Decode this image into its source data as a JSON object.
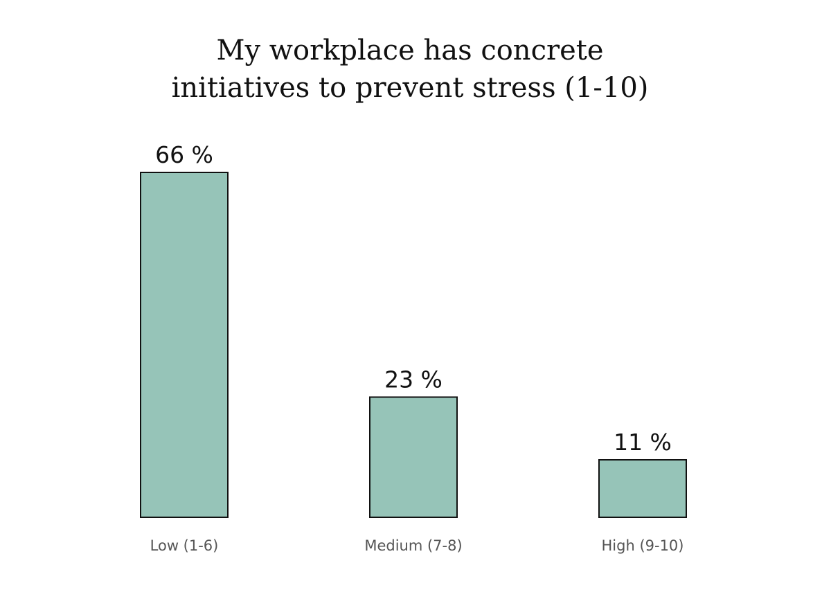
{
  "chart_data": {
    "type": "bar",
    "title_lines": [
      "My workplace has concrete",
      "initiatives to prevent stress (1-10)"
    ],
    "categories": [
      "Low (1-6)",
      "Medium (7-8)",
      "High (9-10)"
    ],
    "values": [
      66,
      23,
      11
    ],
    "data_labels": [
      "66 %",
      "23 %",
      "11 %"
    ],
    "unit": "%",
    "ylim": [
      0,
      66
    ],
    "grid": false,
    "legend": "none",
    "bar_color": "#96c4b8",
    "bar_outline_color": "#111111"
  }
}
